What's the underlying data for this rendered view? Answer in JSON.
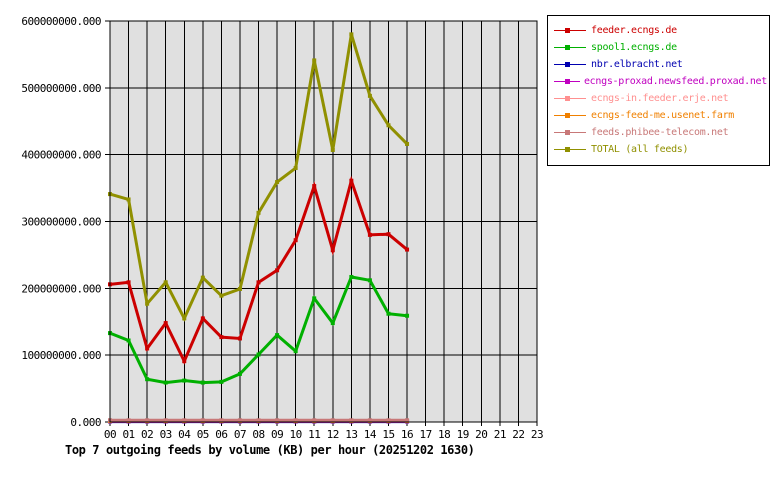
{
  "chart_data": {
    "type": "line",
    "title": "Top 7 outgoing feeds by volume (KB) per hour (20251202 1630)",
    "grid": true,
    "legend_position": "outside-top-right",
    "plot_bg_color": "#e0e0e0",
    "frame_color": "#000000",
    "x_axis": {
      "tick_labels": [
        "00",
        "01",
        "02",
        "03",
        "04",
        "05",
        "06",
        "07",
        "08",
        "09",
        "10",
        "11",
        "12",
        "13",
        "14",
        "15",
        "16",
        "17",
        "18",
        "19",
        "20",
        "21",
        "22",
        "23"
      ]
    },
    "y_axis": {
      "lim": [
        0,
        600000000
      ],
      "ticks": [
        0,
        100000000,
        200000000,
        300000000,
        400000000,
        500000000,
        600000000
      ],
      "tick_labels": [
        "0.000",
        "100000000.000",
        "200000000.000",
        "300000000.000",
        "400000000.000",
        "500000000.000",
        "600000000.000"
      ]
    },
    "hours_with_data": [
      "00",
      "01",
      "02",
      "03",
      "04",
      "05",
      "06",
      "07",
      "08",
      "09",
      "10",
      "11",
      "12",
      "13",
      "14",
      "15",
      "16"
    ],
    "series": [
      {
        "name": "feeder.ecngs.de",
        "color": "#cc0000",
        "values": [
          206000000,
          209000000,
          110000000,
          148000000,
          91000000,
          155000000,
          127000000,
          125000000,
          209000000,
          227000000,
          272000000,
          353000000,
          257000000,
          361000000,
          280000000,
          281000000,
          258000000
        ]
      },
      {
        "name": "spool1.ecngs.de",
        "color": "#00b000",
        "values": [
          133000000,
          122000000,
          64000000,
          59000000,
          62000000,
          59000000,
          60000000,
          72000000,
          101000000,
          130000000,
          106000000,
          185000000,
          148000000,
          217000000,
          212000000,
          162000000,
          159000000
        ]
      },
      {
        "name": "nbr.elbracht.net",
        "color": "#0000b0",
        "values": [
          600000,
          600000,
          600000,
          600000,
          600000,
          600000,
          600000,
          600000,
          600000,
          600000,
          600000,
          600000,
          600000,
          600000,
          600000,
          600000,
          600000
        ]
      },
      {
        "name": "ecngs-proxad.newsfeed.proxad.net",
        "color": "#c000c0",
        "values": [
          900000,
          900000,
          900000,
          900000,
          900000,
          900000,
          900000,
          900000,
          900000,
          900000,
          900000,
          900000,
          900000,
          900000,
          900000,
          900000,
          900000
        ]
      },
      {
        "name": "ecngs-in.feeder.erje.net",
        "color": "#ff9090",
        "values": [
          1300000,
          1300000,
          1300000,
          1300000,
          1300000,
          1300000,
          1300000,
          1300000,
          1300000,
          1300000,
          1300000,
          1300000,
          1300000,
          1300000,
          1300000,
          1300000,
          1300000
        ]
      },
      {
        "name": "ecngs-feed-me.usenet.farm",
        "color": "#f08000",
        "values": [
          1700000,
          1700000,
          1700000,
          1700000,
          1700000,
          1700000,
          1700000,
          1700000,
          1700000,
          1700000,
          1700000,
          1700000,
          1700000,
          1700000,
          1700000,
          1700000,
          1700000
        ]
      },
      {
        "name": "feeds.phibee-telecom.net",
        "color": "#c87878",
        "values": [
          2600000,
          2600000,
          2600000,
          2600000,
          2600000,
          2600000,
          2600000,
          2600000,
          2600000,
          2600000,
          2600000,
          2600000,
          2600000,
          2600000,
          2600000,
          2600000,
          2600000
        ]
      },
      {
        "name": "TOTAL (all feeds)",
        "color": "#909000",
        "values": [
          341000000,
          333000000,
          177000000,
          209000000,
          155000000,
          216000000,
          189000000,
          199000000,
          313000000,
          359000000,
          380000000,
          541000000,
          407000000,
          580000000,
          488000000,
          444000000,
          416000000
        ]
      }
    ]
  }
}
